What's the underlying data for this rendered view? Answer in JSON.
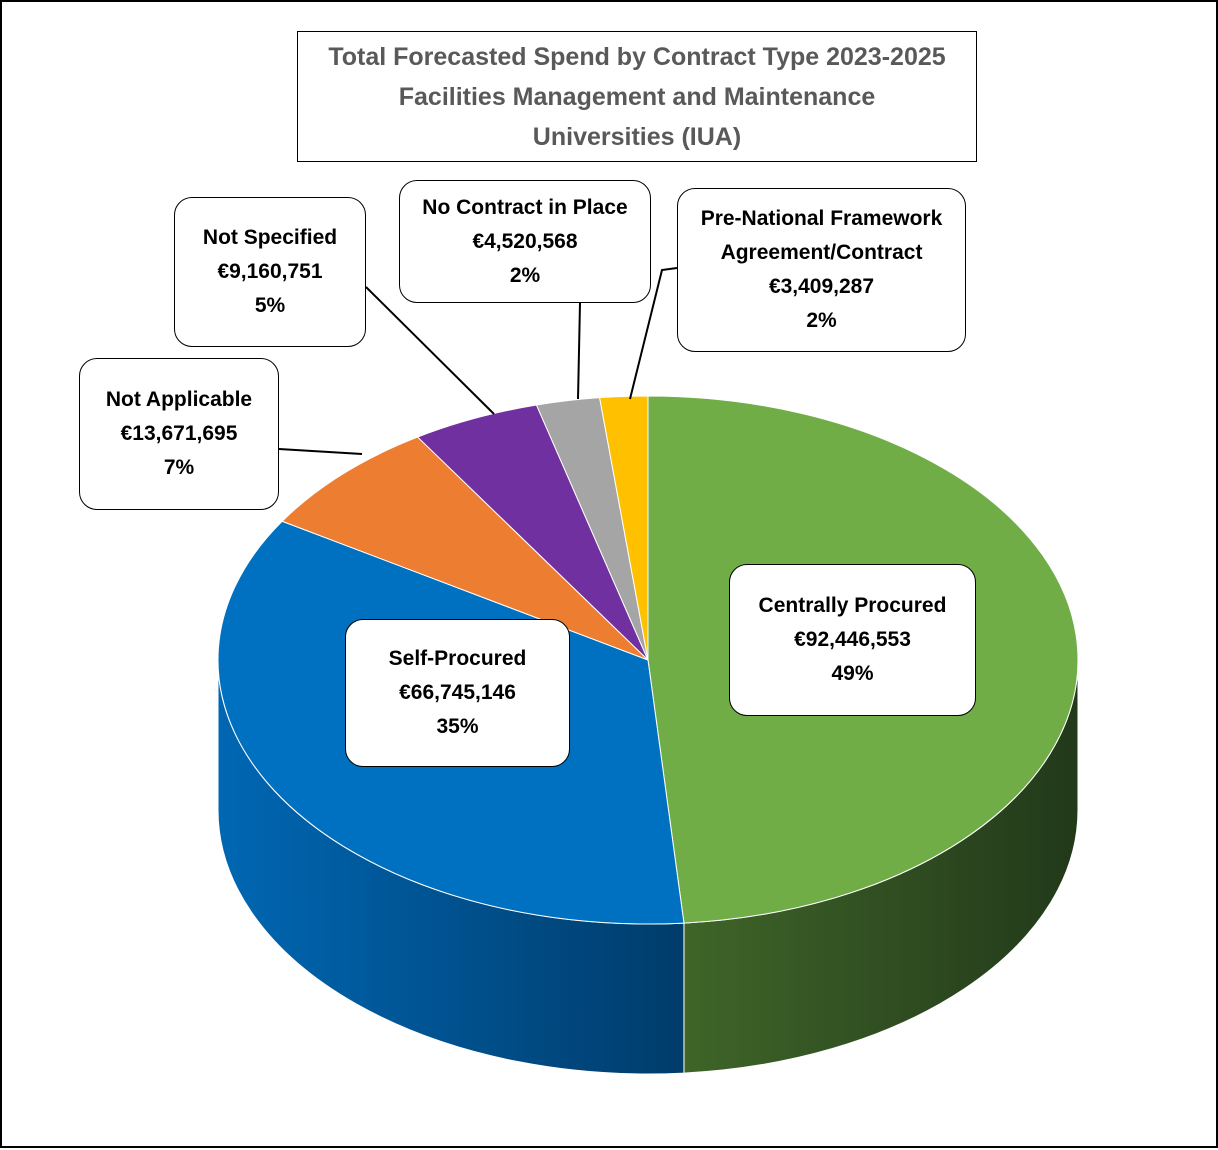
{
  "chart_data": {
    "type": "pie",
    "title": [
      "Total Forecasted Spend by Contract Type 2023-2025",
      "Facilities Management and Maintenance",
      "Universities (IUA)"
    ],
    "three_d": true,
    "slices": [
      {
        "name": "Centrally Procured",
        "value_label": "€92,446,553",
        "value": 92446553,
        "percent_label": "49%",
        "color": "#70AD47",
        "side_color": "#2D4A1E"
      },
      {
        "name": "Self-Procured",
        "value_label": "€66,745,146",
        "value": 66745146,
        "percent_label": "35%",
        "color": "#0070C0",
        "side_color": "#004B87"
      },
      {
        "name": "Not Applicable",
        "value_label": "€13,671,695",
        "value": 13671695,
        "percent_label": "7%",
        "color": "#ED7D31",
        "side_color": "#A0531F"
      },
      {
        "name": "Not Specified",
        "value_label": "€9,160,751",
        "value": 9160751,
        "percent_label": "5%",
        "color": "#7030A0",
        "side_color": "#4A1F6B"
      },
      {
        "name": "No Contract in Place",
        "value_label": "€4,520,568",
        "value": 4520568,
        "percent_label": "2%",
        "color": "#A5A5A5",
        "side_color": "#6E6E6E"
      },
      {
        "name": "Pre-National Framework Agreement/Contract",
        "name_lines": [
          "Pre-National Framework",
          "Agreement/Contract"
        ],
        "value_label": "€3,409,287",
        "value": 3409287,
        "percent_label": "2%",
        "color": "#FFC000",
        "side_color": "#B38600"
      }
    ]
  }
}
